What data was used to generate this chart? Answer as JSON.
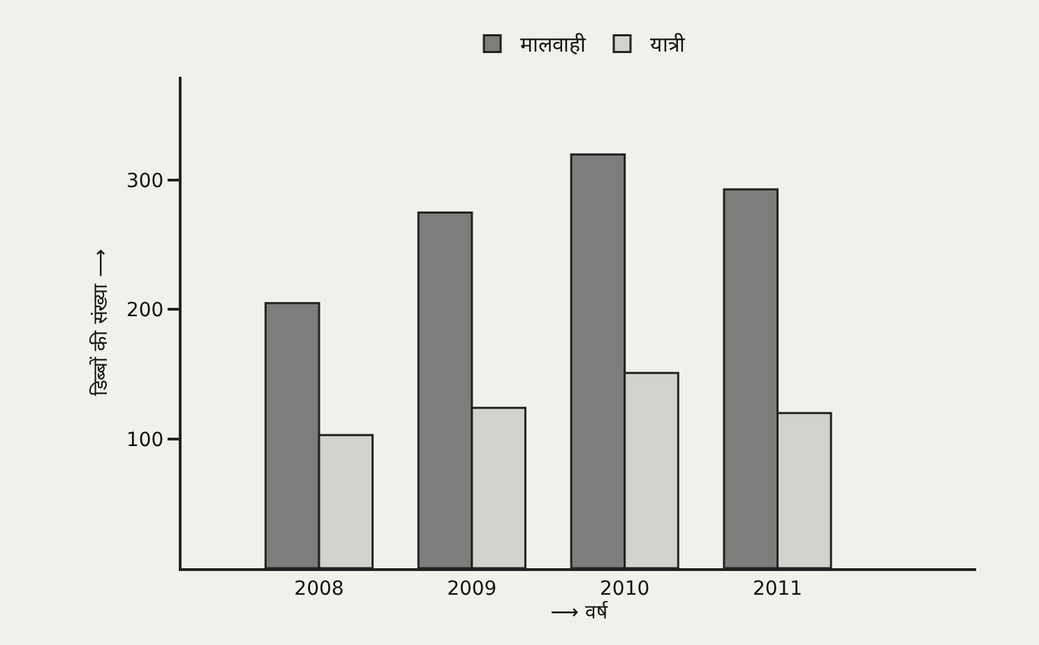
{
  "chart_data": {
    "type": "bar",
    "xlabel": "⟶ वर्ष",
    "ylabel": "डिब्बों की संख्या ⟶",
    "categories": [
      "2008",
      "2009",
      "2010",
      "2011"
    ],
    "series": [
      {
        "name": "मालवाही",
        "color": "#7d7d7b",
        "values": [
          205,
          275,
          320,
          293
        ]
      },
      {
        "name": "यात्री",
        "color": "#d2d2ce",
        "values": [
          103,
          124,
          151,
          120
        ]
      }
    ],
    "ylim": [
      0,
      380
    ],
    "yticks": [
      100,
      200,
      300
    ],
    "grid": false,
    "legend": "top"
  }
}
